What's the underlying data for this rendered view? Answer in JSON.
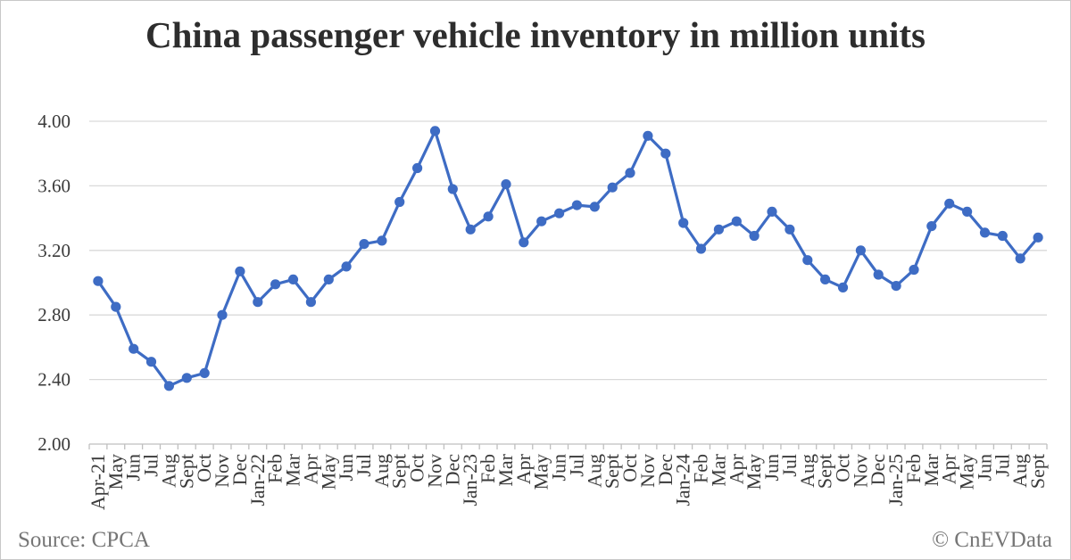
{
  "page": {
    "title": "China passenger vehicle inventory in million units",
    "source": "Source: CPCA",
    "copyright": "© CnEVData"
  },
  "colors": {
    "line": "#3e6cc4",
    "marker": "#3e6cc4",
    "gridline": "#d9d9d9",
    "axis": "#bfbfbf",
    "tick_text": "#3a3a3a",
    "title_text": "#2d2d2d",
    "footer_text": "#767676",
    "background": "#ffffff"
  },
  "chart_data": {
    "type": "line",
    "title": "China passenger vehicle inventory in million units",
    "unit": "million units",
    "grid": true,
    "legend": false,
    "marker": "circle",
    "ylim": [
      2.0,
      4.0
    ],
    "yticks": [
      2.0,
      2.4,
      2.8,
      3.2,
      3.6,
      4.0
    ],
    "ytick_labels": [
      "2.00",
      "2.40",
      "2.80",
      "3.20",
      "3.60",
      "4.00"
    ],
    "categories": [
      "Apr-21",
      "May",
      "Jun",
      "Jul",
      "Aug",
      "Sept",
      "Oct",
      "Nov",
      "Dec",
      "Jan-22",
      "Feb",
      "Mar",
      "Apr",
      "May",
      "Jun",
      "Jul",
      "Aug",
      "Sept",
      "Oct",
      "Nov",
      "Dec",
      "Jan-23",
      "Feb",
      "Mar",
      "Apr",
      "May",
      "Jun",
      "Jul",
      "Aug",
      "Sept",
      "Oct",
      "Nov",
      "Dec",
      "Jan-24",
      "Feb",
      "Mar",
      "Apr",
      "May",
      "Jun",
      "Jul",
      "Aug",
      "Sept",
      "Oct",
      "Nov",
      "Dec",
      "Jan-25",
      "Feb",
      "Mar",
      "Apr",
      "May",
      "Jun",
      "Jul",
      "Aug",
      "Sept"
    ],
    "values": [
      3.01,
      2.85,
      2.59,
      2.51,
      2.36,
      2.41,
      2.44,
      2.8,
      3.07,
      2.88,
      2.99,
      3.02,
      2.88,
      3.02,
      3.1,
      3.24,
      3.26,
      3.5,
      3.71,
      3.94,
      3.58,
      3.33,
      3.41,
      3.61,
      3.25,
      3.38,
      3.43,
      3.48,
      3.47,
      3.59,
      3.68,
      3.91,
      3.8,
      3.37,
      3.21,
      3.33,
      3.38,
      3.29,
      3.44,
      3.33,
      3.14,
      3.02,
      2.97,
      3.2,
      3.05,
      2.98,
      3.08,
      3.35,
      3.49,
      3.44,
      3.31,
      3.29,
      3.15,
      3.28
    ]
  }
}
